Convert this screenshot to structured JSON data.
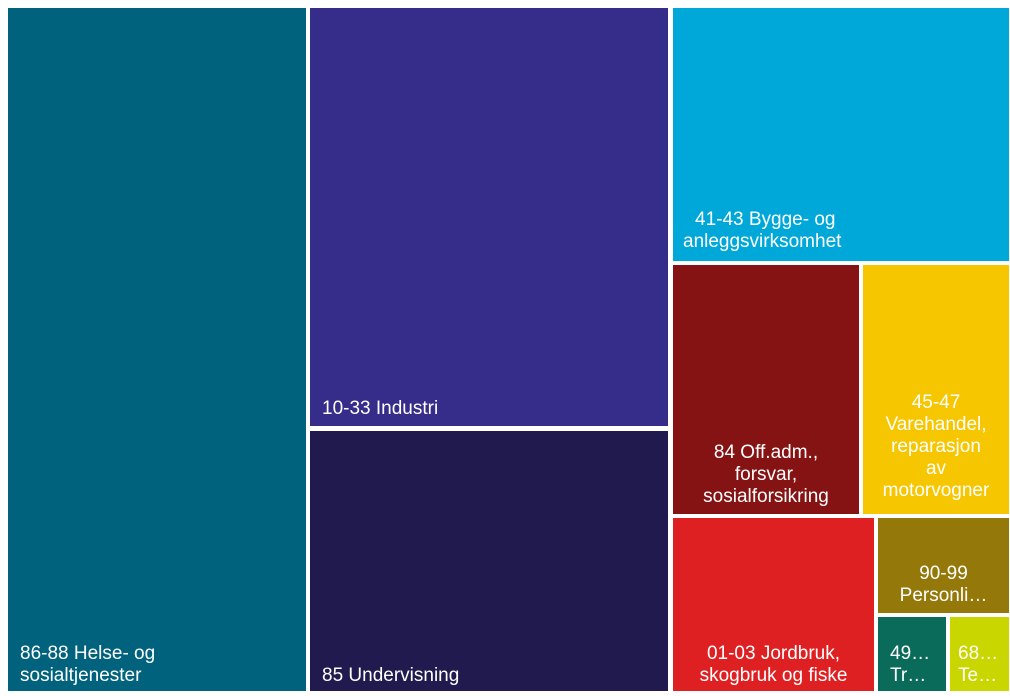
{
  "chart_data": {
    "type": "treemap",
    "tiles": [
      {
        "id": "helse",
        "label_lines": [
          "86-88 Helse- og",
          "sosialtjenester"
        ],
        "color": "#00627c"
      },
      {
        "id": "industri",
        "label_lines": [
          "10-33 Industri"
        ],
        "color": "#352d89"
      },
      {
        "id": "undervisning",
        "label_lines": [
          "85 Undervisning"
        ],
        "color": "#201a4e"
      },
      {
        "id": "bygg",
        "label_lines": [
          "41-43 Bygge- og",
          "anleggsvirksomhet"
        ],
        "color": "#00a8d9"
      },
      {
        "id": "offadm",
        "label_lines": [
          "84 Off.adm.,",
          "forsvar,",
          "sosialforsikring"
        ],
        "color": "#861314"
      },
      {
        "id": "varehandel",
        "label_lines": [
          "45-47",
          "Varehandel,",
          "reparasjon",
          "av",
          "motorvogner"
        ],
        "color": "#f6c600"
      },
      {
        "id": "jordbruk",
        "label_lines": [
          "01-03 Jordbruk,",
          "skogbruk og fiske"
        ],
        "color": "#df2022"
      },
      {
        "id": "personlig",
        "label_lines": [
          "90-99",
          "Personli…"
        ],
        "color": "#94780a"
      },
      {
        "id": "transport",
        "label_lines": [
          "49…",
          "Tr…"
        ],
        "color": "#0b6b5a"
      },
      {
        "id": "teknisk",
        "label_lines": [
          "68…",
          "Te…"
        ],
        "color": "#c9d600"
      }
    ]
  }
}
